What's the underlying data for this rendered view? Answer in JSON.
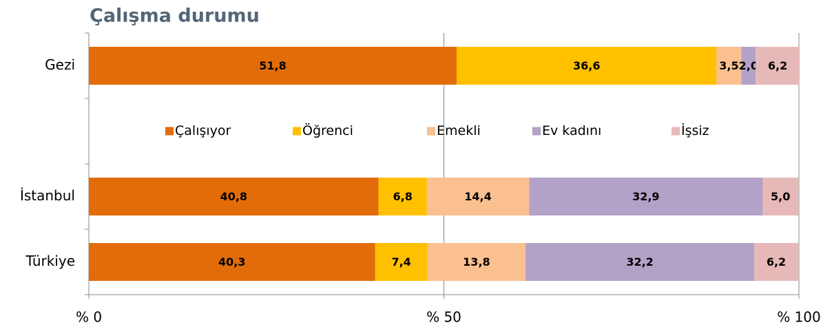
{
  "chart_data": {
    "type": "stacked-bar-horizontal",
    "title": "Çalışma durumu",
    "categories": [
      "Gezi",
      null,
      "İstanbul",
      "Türkiye"
    ],
    "series": [
      {
        "name": "Çalışıyor",
        "color": "#e36c0a",
        "values": [
          51.8,
          null,
          40.8,
          40.3
        ],
        "value_labels": [
          "51,8",
          null,
          "40,8",
          "40,3"
        ]
      },
      {
        "name": "Öğrenci",
        "color": "#ffc000",
        "values": [
          36.6,
          null,
          6.8,
          7.4
        ],
        "value_labels": [
          "36,6",
          null,
          "6,8",
          "7,4"
        ]
      },
      {
        "name": "Emekli",
        "color": "#fac090",
        "values": [
          3.5,
          null,
          14.4,
          13.8
        ],
        "value_labels": [
          "3,5",
          null,
          "14,4",
          "13,8"
        ]
      },
      {
        "name": "Ev kadını",
        "color": "#b3a2c7",
        "values": [
          2.0,
          null,
          32.9,
          32.2
        ],
        "value_labels": [
          "2,0",
          null,
          "32,9",
          "32,2"
        ]
      },
      {
        "name": "İşsiz",
        "color": "#e6b9b8",
        "values": [
          6.2,
          null,
          5.0,
          6.2
        ],
        "value_labels": [
          "6,2",
          null,
          "5,0",
          "6,2"
        ]
      }
    ],
    "xlim": [
      0,
      100
    ],
    "xticks": [
      {
        "value": 0,
        "label": "% 0"
      },
      {
        "value": 50,
        "label": "% 50"
      },
      {
        "value": 100,
        "label": "% 100"
      }
    ],
    "grid": true,
    "legend": "center"
  }
}
